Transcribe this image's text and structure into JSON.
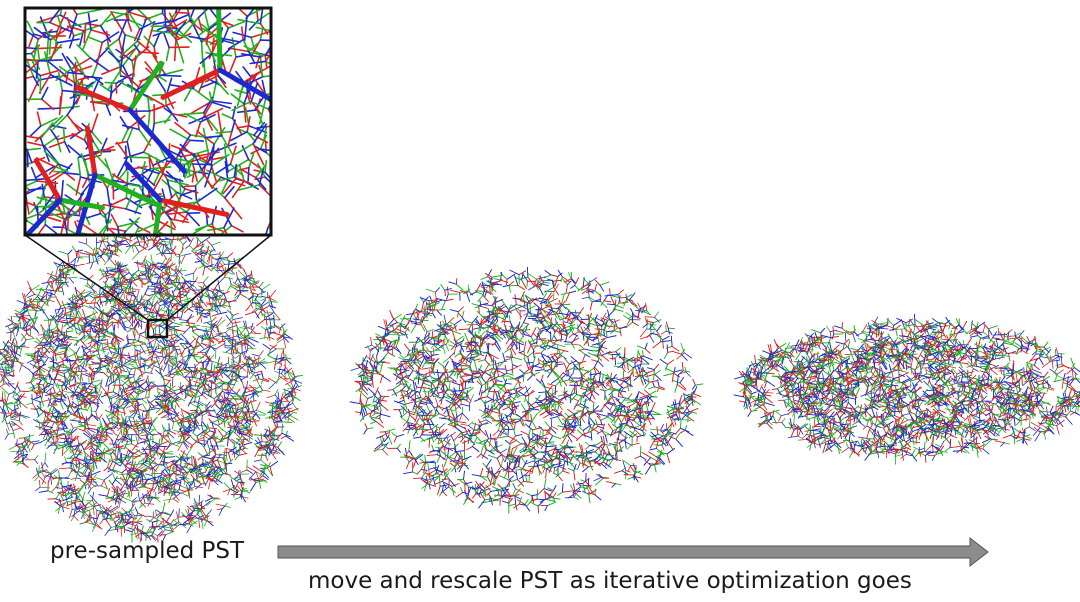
{
  "figure": {
    "left_label": "pre-sampled PST",
    "arrow_caption": "move and rescale PST as iterative optimization goes"
  },
  "colors": {
    "axis_x": "#e02020",
    "axis_y": "#20b020",
    "axis_z": "#1a2ad0",
    "frame": "#111111",
    "arrow_fill": "#8c8c8c",
    "arrow_stroke": "#555555"
  },
  "stages": [
    {
      "name": "sphere"
    },
    {
      "name": "flattened-ellipsoid"
    },
    {
      "name": "thin-disc"
    }
  ]
}
